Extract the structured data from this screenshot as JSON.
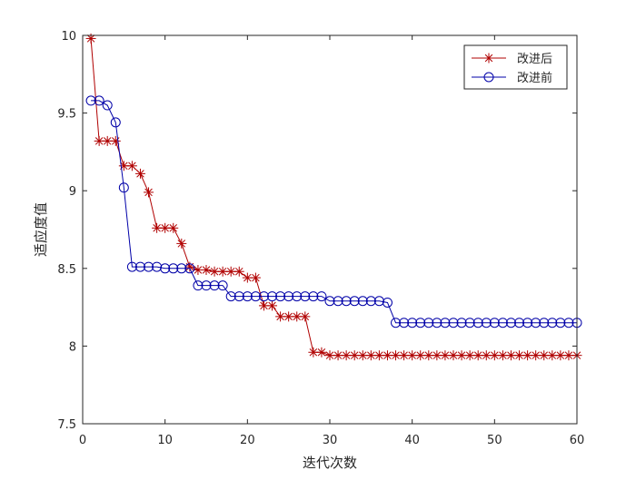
{
  "chart_data": {
    "type": "line",
    "title": "",
    "xlabel": "迭代次数",
    "ylabel": "适应度值",
    "xlim": [
      0,
      60
    ],
    "ylim": [
      7.5,
      10
    ],
    "xticks": [
      0,
      10,
      20,
      30,
      40,
      50,
      60
    ],
    "yticks": [
      7.5,
      8,
      8.5,
      9,
      9.5,
      10
    ],
    "xtick_labels": [
      "0",
      "10",
      "20",
      "30",
      "40",
      "50",
      "60"
    ],
    "ytick_labels": [
      "7.5",
      "8",
      "8.5",
      "9",
      "9.5",
      "10"
    ],
    "grid": false,
    "legend_position": "top-right",
    "series": [
      {
        "name": "改进后",
        "color": "#b00000",
        "marker": "asterisk",
        "x": [
          1,
          2,
          3,
          4,
          5,
          6,
          7,
          8,
          9,
          10,
          11,
          12,
          13,
          14,
          15,
          16,
          17,
          18,
          19,
          20,
          21,
          22,
          23,
          24,
          25,
          26,
          27,
          28,
          29,
          30,
          31,
          32,
          33,
          34,
          35,
          36,
          37,
          38,
          39,
          40,
          41,
          42,
          43,
          44,
          45,
          46,
          47,
          48,
          49,
          50,
          51,
          52,
          53,
          54,
          55,
          56,
          57,
          58,
          59,
          60
        ],
        "values": [
          9.98,
          9.32,
          9.32,
          9.32,
          9.16,
          9.16,
          9.11,
          8.99,
          8.76,
          8.76,
          8.76,
          8.66,
          8.51,
          8.49,
          8.49,
          8.48,
          8.48,
          8.48,
          8.48,
          8.44,
          8.44,
          8.26,
          8.26,
          8.19,
          8.19,
          8.19,
          8.19,
          7.96,
          7.96,
          7.94,
          7.94,
          7.94,
          7.94,
          7.94,
          7.94,
          7.94,
          7.94,
          7.94,
          7.94,
          7.94,
          7.94,
          7.94,
          7.94,
          7.94,
          7.94,
          7.94,
          7.94,
          7.94,
          7.94,
          7.94,
          7.94,
          7.94,
          7.94,
          7.94,
          7.94,
          7.94,
          7.94,
          7.94,
          7.94,
          7.94
        ]
      },
      {
        "name": "改进前",
        "color": "#0000a8",
        "marker": "circle",
        "x": [
          1,
          2,
          3,
          4,
          5,
          6,
          7,
          8,
          9,
          10,
          11,
          12,
          13,
          14,
          15,
          16,
          17,
          18,
          19,
          20,
          21,
          22,
          23,
          24,
          25,
          26,
          27,
          28,
          29,
          30,
          31,
          32,
          33,
          34,
          35,
          36,
          37,
          38,
          39,
          40,
          41,
          42,
          43,
          44,
          45,
          46,
          47,
          48,
          49,
          50,
          51,
          52,
          53,
          54,
          55,
          56,
          57,
          58,
          59,
          60
        ],
        "values": [
          9.58,
          9.58,
          9.55,
          9.44,
          9.02,
          8.51,
          8.51,
          8.51,
          8.51,
          8.5,
          8.5,
          8.5,
          8.5,
          8.39,
          8.39,
          8.39,
          8.39,
          8.32,
          8.32,
          8.32,
          8.32,
          8.32,
          8.32,
          8.32,
          8.32,
          8.32,
          8.32,
          8.32,
          8.32,
          8.29,
          8.29,
          8.29,
          8.29,
          8.29,
          8.29,
          8.29,
          8.28,
          8.15,
          8.15,
          8.15,
          8.15,
          8.15,
          8.15,
          8.15,
          8.15,
          8.15,
          8.15,
          8.15,
          8.15,
          8.15,
          8.15,
          8.15,
          8.15,
          8.15,
          8.15,
          8.15,
          8.15,
          8.15,
          8.15,
          8.15
        ]
      }
    ]
  }
}
